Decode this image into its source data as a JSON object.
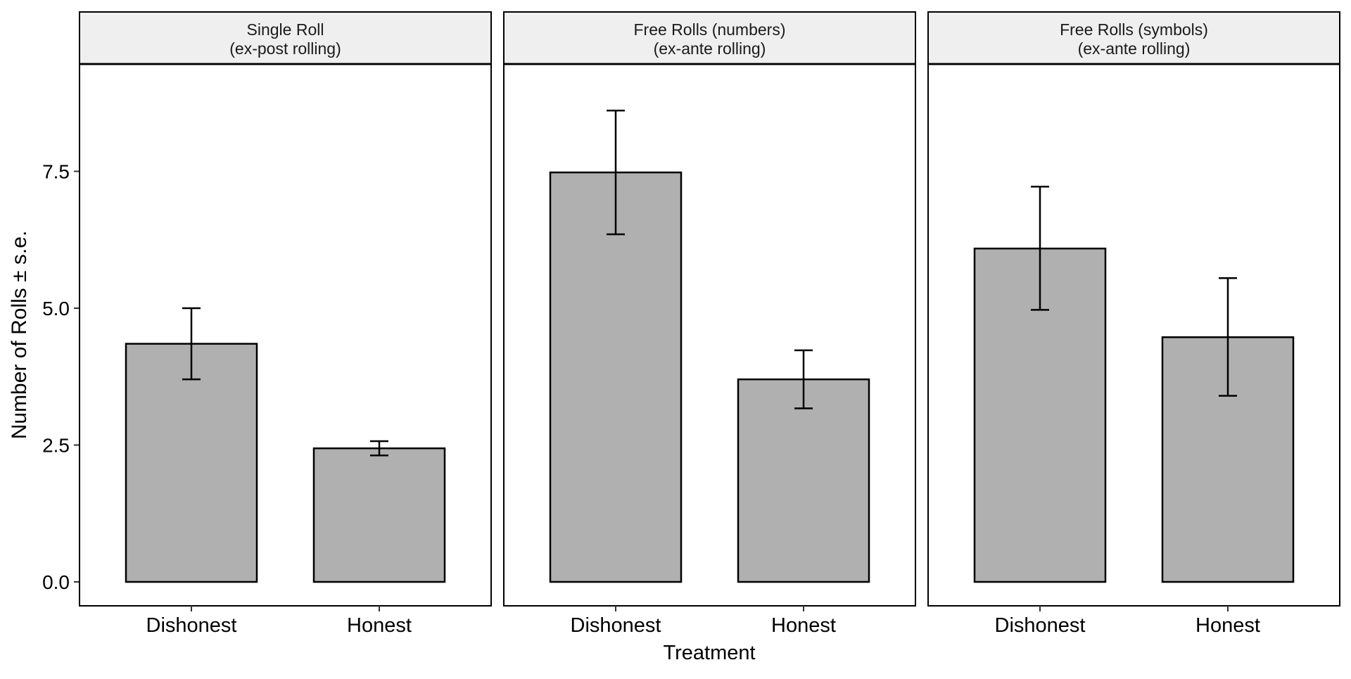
{
  "chart_data": {
    "type": "bar",
    "xlabel": "Treatment",
    "ylabel": "Number of Rolls ± s.e.",
    "ylim": [
      -0.45,
      9.45
    ],
    "yticks": [
      "0.0",
      "2.5",
      "5.0",
      "7.5"
    ],
    "grid": false,
    "categories": [
      "Dishonest",
      "Honest"
    ],
    "panels": [
      {
        "title_line1": "Single Roll",
        "title_line2": "(ex-post rolling)",
        "values": [
          4.35,
          2.44
        ],
        "error_low": [
          3.7,
          2.31
        ],
        "error_high": [
          5.0,
          2.57
        ]
      },
      {
        "title_line1": "Free Rolls (numbers)",
        "title_line2": "(ex-ante rolling)",
        "values": [
          7.48,
          3.7
        ],
        "error_low": [
          6.35,
          3.17
        ],
        "error_high": [
          8.61,
          4.23
        ]
      },
      {
        "title_line1": "Free Rolls (symbols)",
        "title_line2": "(ex-ante rolling)",
        "values": [
          6.09,
          4.47
        ],
        "error_low": [
          4.97,
          3.4
        ],
        "error_high": [
          7.22,
          5.55
        ]
      }
    ],
    "colors": {
      "bar_fill": "#b0b0b0",
      "bar_stroke": "#000000",
      "strip_fill": "#efefef",
      "panel_border": "#000000"
    }
  }
}
